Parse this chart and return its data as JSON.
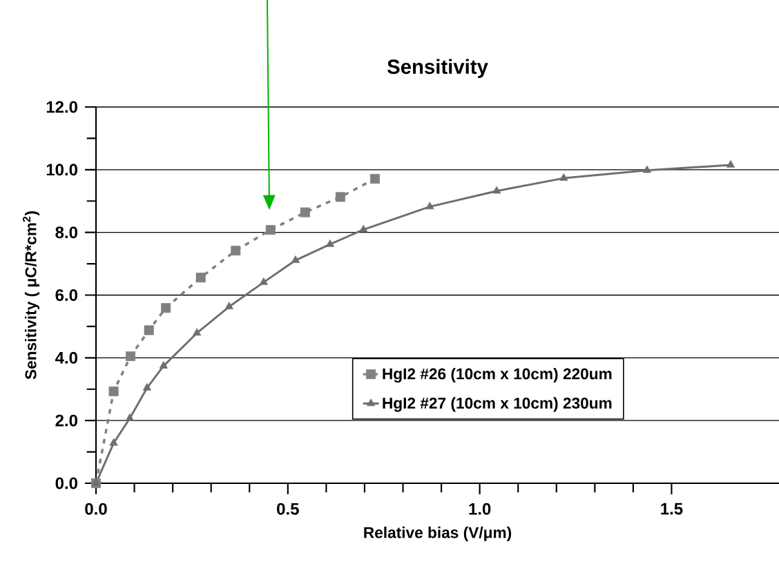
{
  "chart_data": {
    "type": "line",
    "title": "Sensitivity",
    "xlabel": "Relative bias (V/μm)",
    "ylabel": "Sensitivity ( μC/R*cm$^{2}$)",
    "xlim": [
      0,
      1.78
    ],
    "xticks": [
      {
        "value": 0,
        "label": "0.0"
      },
      {
        "value": 0.5,
        "label": "0.5"
      },
      {
        "value": 1.0,
        "label": "1.0"
      },
      {
        "value": 1.5,
        "label": "1.5"
      }
    ],
    "ylim": [
      0,
      12
    ],
    "yticks": [
      {
        "value": 0,
        "label": "0.0"
      },
      {
        "value": 1,
        "label": null
      },
      {
        "value": 2,
        "label": "2.0"
      },
      {
        "value": 3,
        "label": null
      },
      {
        "value": 4,
        "label": "4.0"
      },
      {
        "value": 5,
        "label": null
      },
      {
        "value": 6,
        "label": "6.0"
      },
      {
        "value": 7,
        "label": null
      },
      {
        "value": 8,
        "label": "8.0"
      },
      {
        "value": 9,
        "label": null
      },
      {
        "value": 10,
        "label": "10.0"
      },
      {
        "value": 11,
        "label": null
      },
      {
        "value": 12,
        "label": "12.0"
      }
    ],
    "grid": "y",
    "legend": "bottom right",
    "series": [
      {
        "name": "HgI2 #26 (10cm x 10cm) 220um",
        "color": "#808080",
        "marker": "square",
        "line_style": "dotted",
        "x": [
          0,
          0.046,
          0.09,
          0.138,
          0.182,
          0.273,
          0.364,
          0.455,
          0.545,
          0.637,
          0.727
        ],
        "values": [
          0,
          2.93,
          4.05,
          4.88,
          5.59,
          6.56,
          7.42,
          8.08,
          8.64,
          9.13,
          9.71
        ]
      },
      {
        "name": "HgI2 #27 (10cm x 10cm) 230um",
        "color": "#6e6e6e",
        "marker": "triangle",
        "line_style": "solid",
        "x": [
          0,
          0.046,
          0.088,
          0.133,
          0.176,
          0.263,
          0.347,
          0.437,
          0.52,
          0.61,
          0.697,
          0.87,
          1.044,
          1.219,
          1.436,
          1.654
        ],
        "values": [
          0,
          1.28,
          2.07,
          3.04,
          3.74,
          4.79,
          5.63,
          6.41,
          7.11,
          7.62,
          8.09,
          8.82,
          9.32,
          9.73,
          9.98,
          10.15
        ]
      }
    ]
  }
}
